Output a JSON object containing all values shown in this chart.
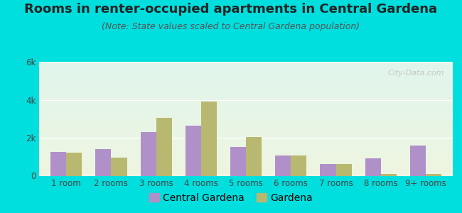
{
  "title": "Rooms in renter-occupied apartments in Central Gardena",
  "subtitle": "(Note: State values scaled to Central Gardena population)",
  "categories": [
    "1 room",
    "2 rooms",
    "3 rooms",
    "4 rooms",
    "5 rooms",
    "6 rooms",
    "7 rooms",
    "8 rooms",
    "9+ rooms"
  ],
  "central_gardena": [
    1250,
    1400,
    2300,
    2650,
    1500,
    1050,
    600,
    900,
    1600
  ],
  "gardena": [
    1200,
    950,
    3050,
    3900,
    2050,
    1050,
    600,
    100,
    100
  ],
  "cg_color": "#b090c8",
  "gardena_color": "#b8b870",
  "bg_outer": "#00dede",
  "bg_plot_top": "#e0f5ec",
  "bg_plot_bottom": "#eef5e0",
  "ylim": [
    0,
    6000
  ],
  "yticks": [
    0,
    2000,
    4000,
    6000
  ],
  "ytick_labels": [
    "0",
    "2k",
    "4k",
    "6k"
  ],
  "watermark": "City-Data.com",
  "title_fontsize": 13,
  "subtitle_fontsize": 9,
  "tick_fontsize": 8.5,
  "legend_fontsize": 10
}
